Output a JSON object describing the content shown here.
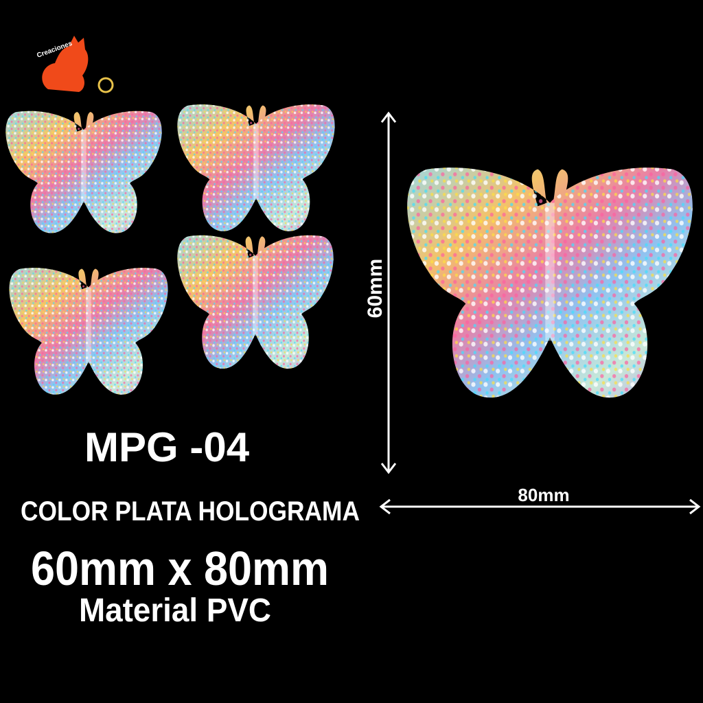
{
  "logo": {
    "text": "Creaciones"
  },
  "dimensions": {
    "height": "60mm",
    "width": "80mm"
  },
  "product": {
    "code": "MPG -04",
    "color": "COLOR PLATA HOLOGRAMA",
    "size": "60mm x 80mm",
    "material": "Material PVC"
  }
}
